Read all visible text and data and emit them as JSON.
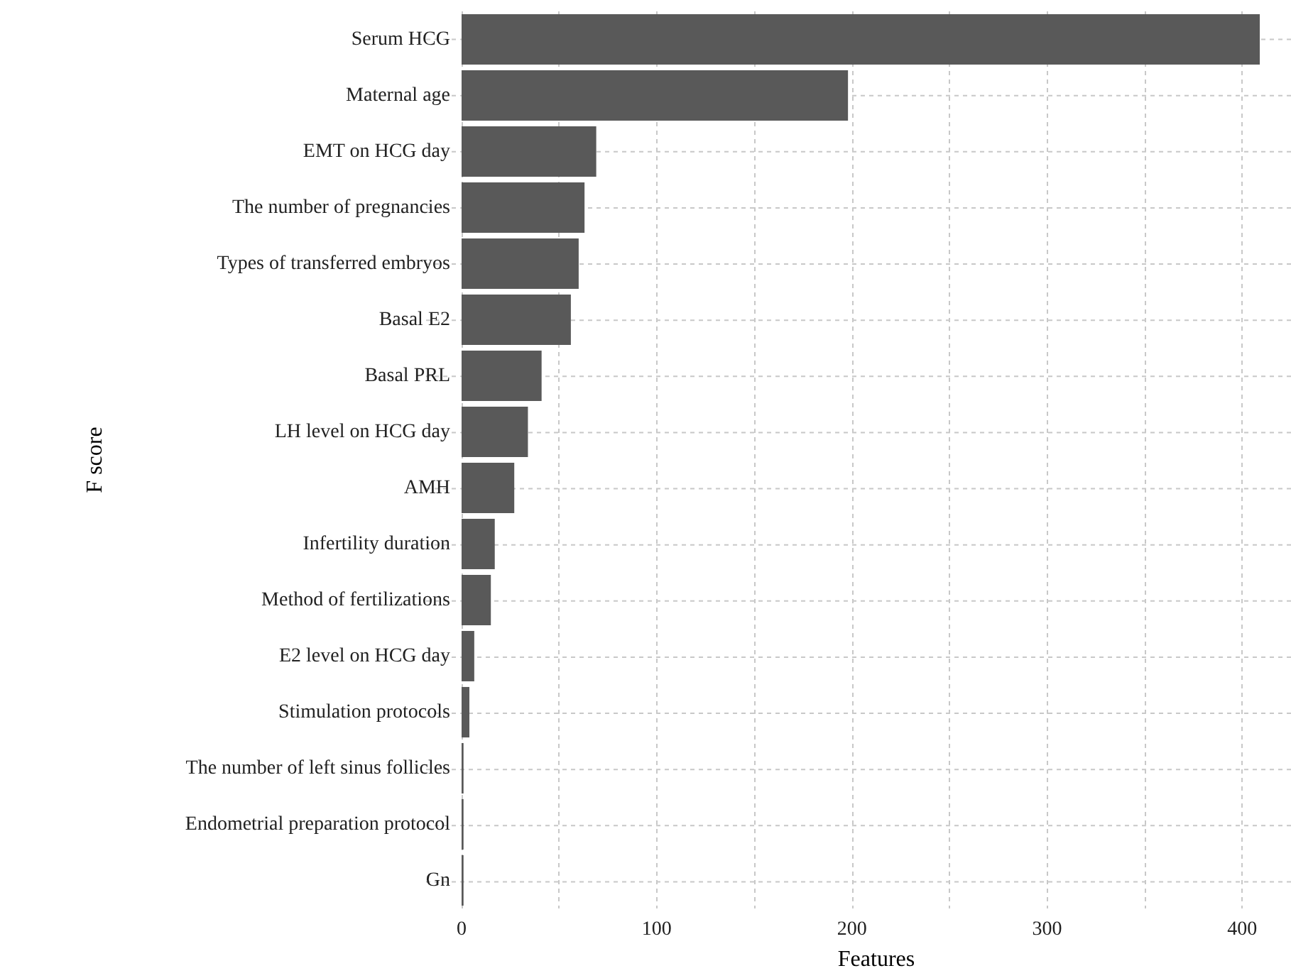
{
  "chart_data": {
    "type": "bar",
    "orientation": "horizontal",
    "xlabel": "Features",
    "ylabel": "F score",
    "categories": [
      "Serum HCG",
      "Maternal age",
      "EMT on HCG day",
      "The number of pregnancies",
      "Types of transferred embryos",
      "Basal E2",
      "Basal PRL",
      "LH level on HCG day",
      "AMH",
      "Infertility duration",
      "Method of fertilizations",
      "E2 level on HCG day",
      "Stimulation protocols",
      "The number of left sinus follicles",
      "Endometrial preparation protocol",
      "Gn"
    ],
    "values": [
      409,
      198,
      69,
      63,
      60,
      56,
      41,
      34,
      27,
      17,
      15,
      6.5,
      4,
      1,
      1,
      1
    ],
    "color": "#595959",
    "xlim": [
      0,
      425
    ],
    "xticks": [
      0,
      {
        "value": 50,
        "label": null
      },
      100,
      {
        "value": 150,
        "label": null
      },
      200,
      {
        "value": 250,
        "label": null
      },
      300,
      {
        "value": 350,
        "label": null
      },
      400
    ],
    "grid": true
  }
}
